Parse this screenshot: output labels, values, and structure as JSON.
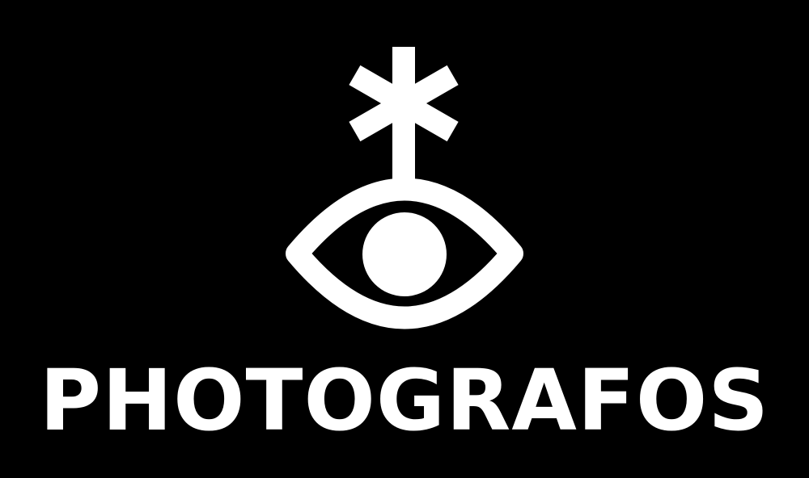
{
  "brand": {
    "name": "PHOTOGRAFOS",
    "background_color": "#000000",
    "foreground_color": "#ffffff",
    "icon": "eye-with-asterisk-icon"
  }
}
